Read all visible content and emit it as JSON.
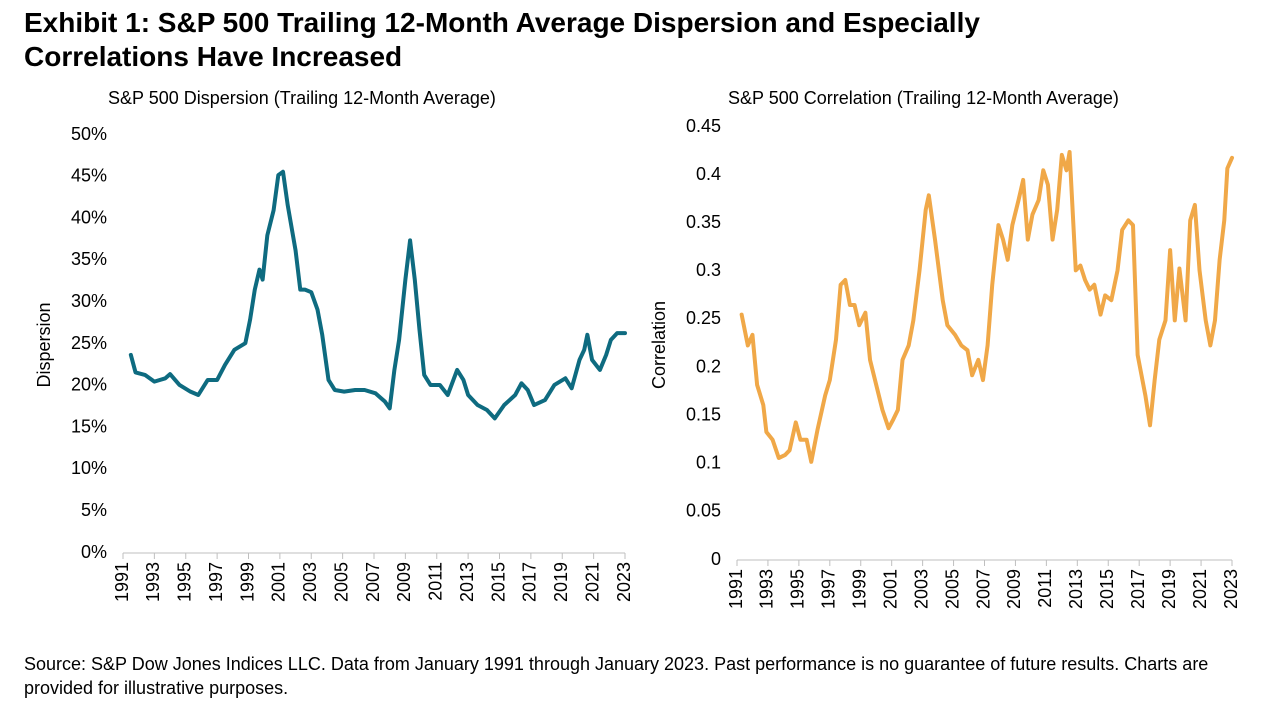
{
  "title": "Exhibit 1: S&P 500 Trailing 12-Month Average Dispersion and Especially Correlations Have Increased",
  "footnote": "Source: S&P Dow Jones Indices LLC. Data from January 1991 through January 2023. Past performance is no guarantee of future results. Charts are provided for illustrative purposes.",
  "chart_data": [
    {
      "type": "line",
      "title": "S&P 500 Dispersion (Trailing 12-Month Average)",
      "y_label": "Dispersion",
      "x": [
        1991.5,
        1991.8,
        1992.4,
        1993.0,
        1993.7,
        1994.0,
        1994.6,
        1995.3,
        1995.8,
        1996.4,
        1997.0,
        1997.5,
        1998.1,
        1998.8,
        1999.1,
        1999.4,
        1999.7,
        1999.9,
        2000.2,
        2000.6,
        2000.9,
        2001.2,
        2001.5,
        2002.0,
        2002.3,
        2002.6,
        2003.0,
        2003.4,
        2003.7,
        2004.1,
        2004.5,
        2005.1,
        2005.8,
        2006.4,
        2007.1,
        2007.7,
        2008.0,
        2008.3,
        2008.6,
        2009.0,
        2009.3,
        2009.6,
        2009.9,
        2010.2,
        2010.6,
        2011.2,
        2011.7,
        2012.3,
        2012.7,
        2013.0,
        2013.6,
        2014.2,
        2014.7,
        2015.3,
        2016.0,
        2016.4,
        2016.8,
        2017.2,
        2017.9,
        2018.5,
        2019.2,
        2019.6,
        2020.1,
        2020.4,
        2020.6,
        2020.9,
        2021.4,
        2021.8,
        2022.1,
        2022.5,
        2023.0
      ],
      "values": [
        23.7,
        21.6,
        21.3,
        20.5,
        20.9,
        21.4,
        20.1,
        19.3,
        18.9,
        20.7,
        20.7,
        22.5,
        24.3,
        25.1,
        27.9,
        31.5,
        33.9,
        32.7,
        38,
        41,
        45.2,
        45.6,
        41.6,
        36.2,
        31.5,
        31.5,
        31.2,
        29.1,
        26.1,
        20.7,
        19.5,
        19.3,
        19.5,
        19.5,
        19.1,
        18.1,
        17.3,
        21.9,
        25.5,
        32.7,
        37.4,
        32.7,
        26.7,
        21.3,
        20.1,
        20.1,
        18.9,
        21.9,
        20.7,
        18.9,
        17.7,
        17.1,
        16.1,
        17.7,
        18.9,
        20.3,
        19.5,
        17.7,
        18.3,
        20.1,
        20.9,
        19.7,
        23.1,
        24.3,
        26.1,
        23.1,
        21.9,
        23.7,
        25.5,
        26.3,
        26.3
      ],
      "color": "#0e6b80",
      "xlim": [
        1991,
        2023
      ],
      "xticks": [
        1991,
        1993,
        1995,
        1997,
        1999,
        2001,
        2003,
        2005,
        2007,
        2009,
        2011,
        2013,
        2015,
        2017,
        2019,
        2021,
        2023
      ],
      "ylim": [
        0,
        50
      ],
      "yticks": [
        {
          "value": 0,
          "label": "0%"
        },
        {
          "value": 5,
          "label": "5%"
        },
        {
          "value": 10,
          "label": "10%"
        },
        {
          "value": 15,
          "label": "15%"
        },
        {
          "value": 20,
          "label": "20%"
        },
        {
          "value": 25,
          "label": "25%"
        },
        {
          "value": 30,
          "label": "30%"
        },
        {
          "value": 35,
          "label": "35%"
        },
        {
          "value": 40,
          "label": "40%"
        },
        {
          "value": 45,
          "label": "45%"
        },
        {
          "value": 50,
          "label": "50%"
        }
      ],
      "grid": false
    },
    {
      "type": "line",
      "title": "S&P 500 Correlation (Trailing 12-Month Average)",
      "y_label": "Correlation",
      "x": [
        1991.3,
        1991.7,
        1992.0,
        1992.3,
        1992.7,
        1992.9,
        1993.3,
        1993.7,
        1994.1,
        1994.4,
        1994.8,
        1995.1,
        1995.5,
        1995.8,
        1996.2,
        1996.7,
        1997.0,
        1997.4,
        1997.7,
        1998.0,
        1998.3,
        1998.6,
        1998.9,
        1999.3,
        1999.6,
        2000.0,
        2000.4,
        2000.8,
        2001.1,
        2001.4,
        2001.7,
        2002.1,
        2002.4,
        2002.8,
        2003.2,
        2003.4,
        2003.8,
        2004.3,
        2004.6,
        2005.1,
        2005.5,
        2005.9,
        2006.2,
        2006.6,
        2006.9,
        2007.2,
        2007.5,
        2007.9,
        2008.2,
        2008.5,
        2008.8,
        2009.2,
        2009.5,
        2009.8,
        2010.1,
        2010.5,
        2010.8,
        2011.1,
        2011.4,
        2011.7,
        2012.0,
        2012.3,
        2012.5,
        2012.9,
        2013.2,
        2013.5,
        2013.8,
        2014.1,
        2014.5,
        2014.8,
        2015.2,
        2015.6,
        2015.9,
        2016.3,
        2016.6,
        2016.9,
        2017.4,
        2017.7,
        2018.0,
        2018.3,
        2018.7,
        2019.0,
        2019.3,
        2019.6,
        2020.0,
        2020.3,
        2020.6,
        2020.9,
        2021.3,
        2021.6,
        2021.9,
        2022.2,
        2022.5,
        2022.7,
        2023.0
      ],
      "values": [
        0.255,
        0.223,
        0.234,
        0.182,
        0.161,
        0.133,
        0.125,
        0.106,
        0.109,
        0.114,
        0.143,
        0.125,
        0.125,
        0.102,
        0.135,
        0.171,
        0.187,
        0.229,
        0.286,
        0.291,
        0.265,
        0.265,
        0.244,
        0.257,
        0.208,
        0.182,
        0.156,
        0.137,
        0.146,
        0.156,
        0.208,
        0.223,
        0.249,
        0.301,
        0.364,
        0.379,
        0.333,
        0.27,
        0.244,
        0.234,
        0.223,
        0.218,
        0.192,
        0.208,
        0.187,
        0.223,
        0.286,
        0.348,
        0.333,
        0.312,
        0.348,
        0.374,
        0.395,
        0.333,
        0.359,
        0.374,
        0.405,
        0.39,
        0.333,
        0.364,
        0.421,
        0.405,
        0.424,
        0.301,
        0.306,
        0.291,
        0.281,
        0.286,
        0.255,
        0.275,
        0.27,
        0.301,
        0.343,
        0.353,
        0.348,
        0.213,
        0.171,
        0.14,
        0.187,
        0.229,
        0.249,
        0.322,
        0.249,
        0.303,
        0.249,
        0.353,
        0.369,
        0.301,
        0.249,
        0.223,
        0.249,
        0.312,
        0.353,
        0.407,
        0.418
      ],
      "color": "#f0a848",
      "xlim": [
        1991,
        2023
      ],
      "xticks": [
        1991,
        1993,
        1995,
        1997,
        1999,
        2001,
        2003,
        2005,
        2007,
        2009,
        2011,
        2013,
        2015,
        2017,
        2019,
        2021,
        2023
      ],
      "ylim": [
        0,
        0.45
      ],
      "yticks": [
        0,
        0.05,
        0.1,
        0.15,
        0.2,
        0.25,
        0.3,
        0.35,
        0.4,
        0.45
      ],
      "grid": false
    }
  ]
}
